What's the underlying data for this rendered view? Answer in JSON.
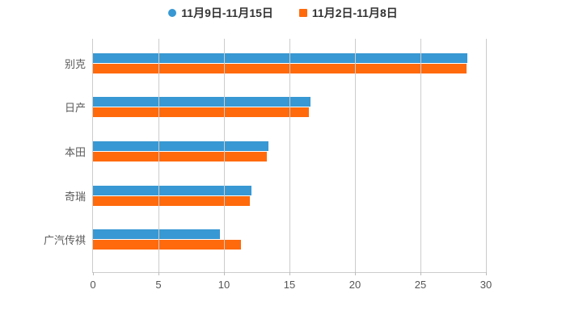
{
  "legend": {
    "items": [
      {
        "label": "11月9日-11月15日",
        "marker": "circle-icon",
        "color": "#3898d3"
      },
      {
        "label": "11月2日-11月8日",
        "marker": "square-icon",
        "color": "#ff6a0c"
      }
    ]
  },
  "chart_data": {
    "type": "bar",
    "orientation": "horizontal",
    "title": "",
    "xlabel": "",
    "ylabel": "",
    "categories": [
      "别克",
      "日产",
      "本田",
      "奇瑞",
      "广汽传祺"
    ],
    "series": [
      {
        "name": "11月9日-11月15日",
        "color": "#3898d3",
        "marker": "circle",
        "values": [
          28.6,
          16.6,
          13.4,
          12.1,
          9.7
        ]
      },
      {
        "name": "11月2日-11月8日",
        "color": "#ff6a0c",
        "marker": "square",
        "values": [
          28.5,
          16.5,
          13.3,
          12.0,
          11.3
        ]
      }
    ],
    "xlim": [
      0,
      30
    ],
    "xticks": [
      0,
      5,
      10,
      15,
      20,
      25,
      30
    ],
    "grid": true,
    "legend_position": "top"
  },
  "colors": {
    "background": "#ffffff",
    "gridline": "#cccccc",
    "axis_line": "#cccccc",
    "tick_label": "#555555",
    "category_label": "#5a5a5a",
    "legend_text": "#333333"
  }
}
